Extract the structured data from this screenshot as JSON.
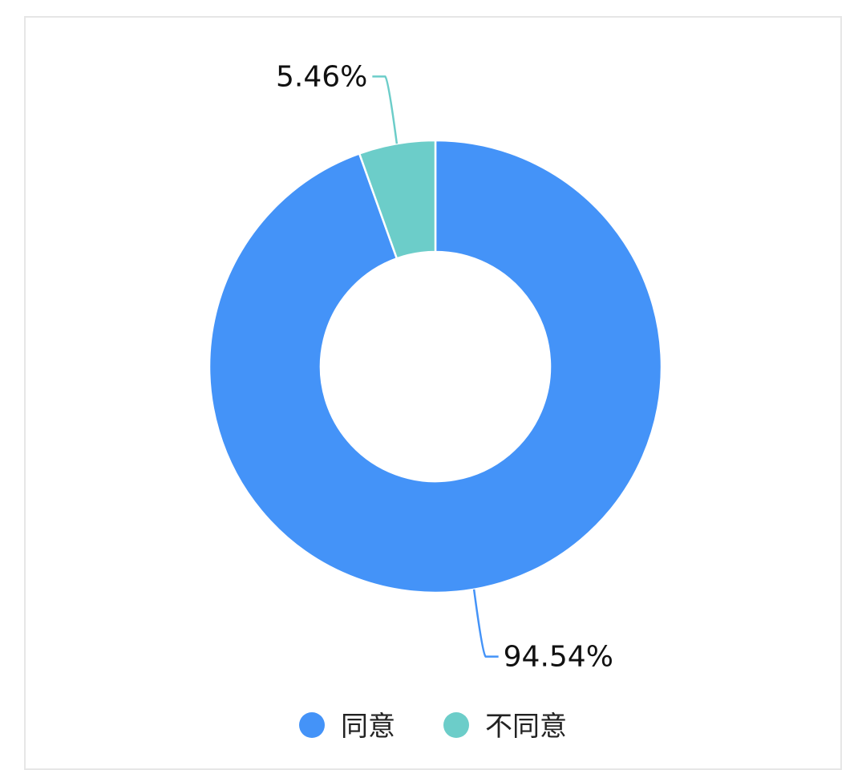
{
  "chart_data": {
    "type": "pie",
    "categories": [
      "同意",
      "不同意"
    ],
    "values": [
      94.54,
      5.46
    ],
    "labels": [
      "94.54%",
      "5.46%"
    ],
    "colors": [
      "#4493F8",
      "#6CCDC9"
    ],
    "donut": true,
    "legend_position": "bottom"
  }
}
